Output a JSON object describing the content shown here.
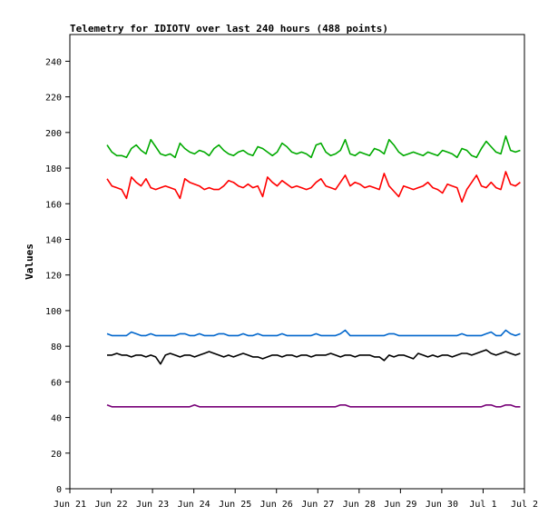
{
  "chart_data": {
    "type": "line",
    "title": "Telemetry for IDIOTV over last 240 hours (488 points)",
    "xlabel": "",
    "ylabel": "Values",
    "ylim": [
      0,
      255
    ],
    "xlim": [
      0,
      11
    ],
    "grid": false,
    "legend": "none",
    "x_ticks": [
      {
        "label": "Jun 21",
        "x": 0
      },
      {
        "label": "Jun 22",
        "x": 1
      },
      {
        "label": "Jun 23",
        "x": 2
      },
      {
        "label": "Jun 24",
        "x": 3
      },
      {
        "label": "Jun 25",
        "x": 4
      },
      {
        "label": "Jun 26",
        "x": 5
      },
      {
        "label": "Jun 27",
        "x": 6
      },
      {
        "label": "Jun 28",
        "x": 7
      },
      {
        "label": "Jun 29",
        "x": 8
      },
      {
        "label": "Jun 30",
        "x": 9
      },
      {
        "label": "Jul 1",
        "x": 10
      },
      {
        "label": "Jul 2",
        "x": 11
      }
    ],
    "y_ticks": [
      0,
      20,
      40,
      60,
      80,
      100,
      120,
      140,
      160,
      180,
      200,
      220,
      240
    ],
    "series": [
      {
        "color": "#00aa00",
        "x_range": [
          0.9,
          10.9
        ],
        "values": [
          193,
          189,
          187,
          187,
          186,
          191,
          193,
          190,
          188,
          196,
          192,
          188,
          187,
          188,
          186,
          194,
          191,
          189,
          188,
          190,
          189,
          187,
          191,
          193,
          190,
          188,
          187,
          189,
          190,
          188,
          187,
          192,
          191,
          189,
          187,
          189,
          194,
          192,
          189,
          188,
          189,
          188,
          186,
          193,
          194,
          189,
          187,
          188,
          190,
          196,
          188,
          187,
          189,
          188,
          187,
          191,
          190,
          188,
          196,
          193,
          189,
          187,
          188,
          189,
          188,
          187,
          189,
          188,
          187,
          190,
          189,
          188,
          186,
          191,
          190,
          187,
          186,
          191,
          195,
          192,
          189,
          188,
          198,
          190,
          189,
          190
        ]
      },
      {
        "color": "#ff0000",
        "x_range": [
          0.9,
          10.9
        ],
        "values": [
          174,
          170,
          169,
          168,
          163,
          175,
          172,
          170,
          174,
          169,
          168,
          169,
          170,
          169,
          168,
          163,
          174,
          172,
          171,
          170,
          168,
          169,
          168,
          168,
          170,
          173,
          172,
          170,
          169,
          171,
          169,
          170,
          164,
          175,
          172,
          170,
          173,
          171,
          169,
          170,
          169,
          168,
          169,
          172,
          174,
          170,
          169,
          168,
          172,
          176,
          170,
          172,
          171,
          169,
          170,
          169,
          168,
          177,
          170,
          167,
          164,
          170,
          169,
          168,
          169,
          170,
          172,
          169,
          168,
          166,
          171,
          170,
          169,
          161,
          168,
          172,
          176,
          170,
          169,
          172,
          169,
          168,
          178,
          171,
          170,
          172
        ]
      },
      {
        "color": "#0066cc",
        "x_range": [
          0.9,
          10.9
        ],
        "values": [
          87,
          86,
          86,
          86,
          86,
          88,
          87,
          86,
          86,
          87,
          86,
          86,
          86,
          86,
          86,
          87,
          87,
          86,
          86,
          87,
          86,
          86,
          86,
          87,
          87,
          86,
          86,
          86,
          87,
          86,
          86,
          87,
          86,
          86,
          86,
          86,
          87,
          86,
          86,
          86,
          86,
          86,
          86,
          87,
          86,
          86,
          86,
          86,
          87,
          89,
          86,
          86,
          86,
          86,
          86,
          86,
          86,
          86,
          87,
          87,
          86,
          86,
          86,
          86,
          86,
          86,
          86,
          86,
          86,
          86,
          86,
          86,
          86,
          87,
          86,
          86,
          86,
          86,
          87,
          88,
          86,
          86,
          89,
          87,
          86,
          87
        ]
      },
      {
        "color": "#000000",
        "x_range": [
          0.9,
          10.9
        ],
        "values": [
          75,
          75,
          76,
          75,
          75,
          74,
          75,
          75,
          74,
          75,
          74,
          70,
          75,
          76,
          75,
          74,
          75,
          75,
          74,
          75,
          76,
          77,
          76,
          75,
          74,
          75,
          74,
          75,
          76,
          75,
          74,
          74,
          73,
          74,
          75,
          75,
          74,
          75,
          75,
          74,
          75,
          75,
          74,
          75,
          75,
          75,
          76,
          75,
          74,
          75,
          75,
          74,
          75,
          75,
          75,
          74,
          74,
          72,
          75,
          74,
          75,
          75,
          74,
          73,
          76,
          75,
          74,
          75,
          74,
          75,
          75,
          74,
          75,
          76,
          76,
          75,
          76,
          77,
          78,
          76,
          75,
          76,
          77,
          76,
          75,
          76
        ]
      },
      {
        "color": "#770077",
        "x_range": [
          0.9,
          10.9
        ],
        "values": [
          47,
          46,
          46,
          46,
          46,
          46,
          46,
          46,
          46,
          46,
          46,
          46,
          46,
          46,
          46,
          46,
          46,
          46,
          47,
          46,
          46,
          46,
          46,
          46,
          46,
          46,
          46,
          46,
          46,
          46,
          46,
          46,
          46,
          46,
          46,
          46,
          46,
          46,
          46,
          46,
          46,
          46,
          46,
          46,
          46,
          46,
          46,
          46,
          47,
          47,
          46,
          46,
          46,
          46,
          46,
          46,
          46,
          46,
          46,
          46,
          46,
          46,
          46,
          46,
          46,
          46,
          46,
          46,
          46,
          46,
          46,
          46,
          46,
          46,
          46,
          46,
          46,
          46,
          47,
          47,
          46,
          46,
          47,
          47,
          46,
          46
        ]
      }
    ]
  }
}
